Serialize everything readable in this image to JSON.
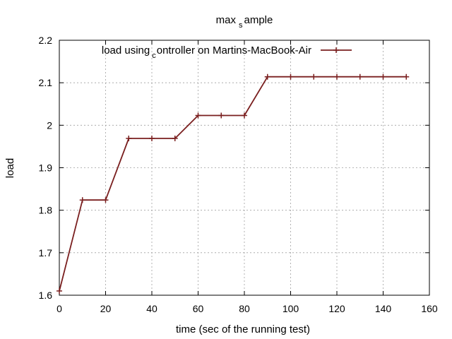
{
  "chart_data": {
    "type": "line",
    "title_parts": [
      "max",
      "s",
      "ample"
    ],
    "xlabel": "time (sec of the running test)",
    "ylabel": "load",
    "xlim": [
      0,
      160
    ],
    "ylim": [
      1.6,
      2.2
    ],
    "xticks": [
      0,
      20,
      40,
      60,
      80,
      100,
      120,
      140,
      160
    ],
    "yticks": [
      1.6,
      1.7,
      1.8,
      1.9,
      2.0,
      2.1,
      2.2
    ],
    "xtick_labels": [
      "0",
      "20",
      "40",
      "60",
      "80",
      "100",
      "120",
      "140",
      "160"
    ],
    "ytick_labels": [
      "1.6",
      "1.7",
      "1.8",
      "1.9",
      "2",
      "2.1",
      "2.2"
    ],
    "grid": true,
    "legend_position": "top-right",
    "series": [
      {
        "legend_parts": [
          "load using",
          "c",
          "ontroller on Martins-MacBook-Air"
        ],
        "color": "#7a1f1f",
        "x": [
          0,
          10,
          20,
          30,
          40,
          50,
          60,
          70,
          80,
          90,
          100,
          110,
          120,
          130,
          140,
          150
        ],
        "y": [
          1.61,
          1.824,
          1.824,
          1.969,
          1.969,
          1.969,
          2.023,
          2.023,
          2.023,
          2.114,
          2.114,
          2.114,
          2.114,
          2.114,
          2.114,
          2.114
        ]
      }
    ]
  }
}
